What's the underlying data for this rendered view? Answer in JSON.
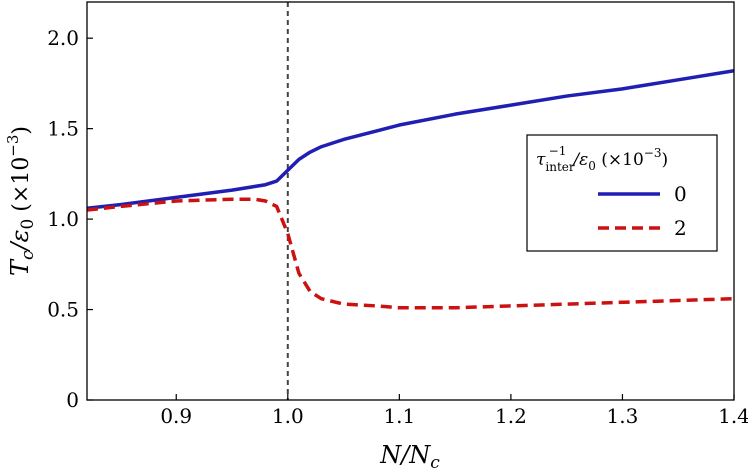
{
  "chart_data": {
    "type": "line",
    "xlabel": "N/N_c",
    "ylabel": "T_c/ε_0 (×10^-3)",
    "xlim": [
      0.82,
      1.4
    ],
    "ylim": [
      0,
      2.2
    ],
    "x_ticks": [
      "0.9",
      "1.0",
      "1.1",
      "1.2",
      "1.3",
      "1.4"
    ],
    "y_ticks": [
      "0",
      "0.5",
      "1.0",
      "1.5",
      "2.0"
    ],
    "vline_x": 1.0,
    "grid": false,
    "legend": {
      "title": "τ_inter^-1/ε_0 (×10^-3)",
      "placement": "center-right"
    },
    "series": [
      {
        "name": "0",
        "color": "#1f1fb4",
        "style": "solid",
        "x": [
          0.82,
          0.85,
          0.9,
          0.95,
          0.98,
          0.99,
          1.0,
          1.01,
          1.02,
          1.03,
          1.05,
          1.1,
          1.15,
          1.2,
          1.25,
          1.3,
          1.35,
          1.4
        ],
        "y": [
          1.06,
          1.08,
          1.12,
          1.16,
          1.19,
          1.21,
          1.27,
          1.33,
          1.37,
          1.4,
          1.44,
          1.52,
          1.58,
          1.63,
          1.68,
          1.72,
          1.77,
          1.82
        ]
      },
      {
        "name": "2",
        "color": "#cc1111",
        "style": "dashed",
        "x": [
          0.82,
          0.85,
          0.9,
          0.95,
          0.97,
          0.98,
          0.99,
          1.0,
          1.01,
          1.02,
          1.03,
          1.05,
          1.08,
          1.1,
          1.15,
          1.2,
          1.25,
          1.3,
          1.35,
          1.4
        ],
        "y": [
          1.05,
          1.07,
          1.1,
          1.11,
          1.11,
          1.1,
          1.07,
          0.92,
          0.7,
          0.6,
          0.56,
          0.53,
          0.52,
          0.51,
          0.51,
          0.52,
          0.53,
          0.54,
          0.55,
          0.56
        ]
      }
    ]
  }
}
